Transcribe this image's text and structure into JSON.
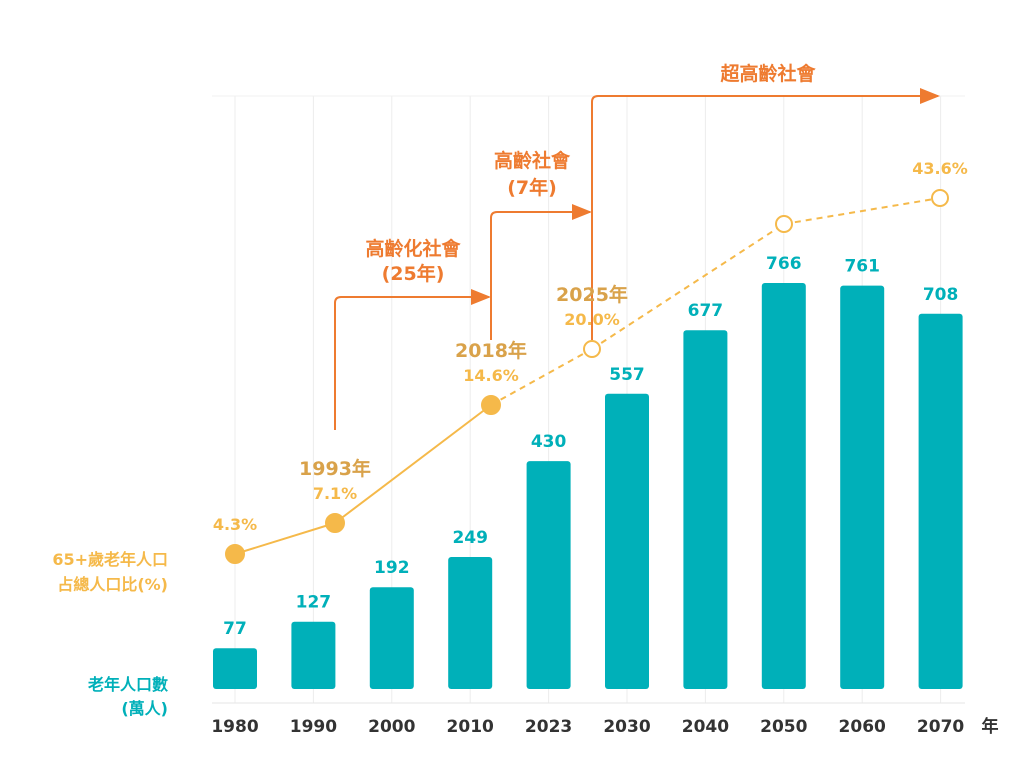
{
  "chart_data": {
    "type": "bar+line",
    "categories": [
      "1980",
      "1990",
      "2000",
      "2010",
      "2023",
      "2030",
      "2040",
      "2050",
      "2060",
      "2070"
    ],
    "x_unit_label": "年",
    "series": [
      {
        "name": "老年人口數\n(萬人)",
        "type": "bar",
        "color": "#00B0B9",
        "values": [
          77,
          127,
          192,
          249,
          430,
          557,
          677,
          766,
          761,
          708
        ]
      },
      {
        "name": "65+歲老年人口\n占總人口比(%)",
        "type": "line",
        "color": "#F5B94A",
        "points": [
          {
            "year": 1980,
            "value": 4.3,
            "label": "4.3%",
            "year_label": "",
            "marker": "filled"
          },
          {
            "year": 1993,
            "value": 7.1,
            "label": "7.1%",
            "year_label": "1993年",
            "marker": "filled"
          },
          {
            "year": 2018,
            "value": 14.6,
            "label": "14.6%",
            "year_label": "2018年",
            "marker": "filled"
          },
          {
            "year": 2025,
            "value": 20.0,
            "label": "20.0%",
            "year_label": "2025年",
            "marker": "hollow"
          },
          {
            "year": 2050,
            "value": 37.5,
            "label": "",
            "year_label": "",
            "marker": "hollow"
          },
          {
            "year": 2070,
            "value": 43.6,
            "label": "43.6%",
            "year_label": "",
            "marker": "hollow"
          }
        ],
        "solid_until": 2018,
        "dashed_from": 2018
      }
    ],
    "stages": [
      {
        "label": "高齡化社會",
        "duration": "(25年)",
        "from": 1993,
        "to": 2018
      },
      {
        "label": "高齡社會",
        "duration": "(7年)",
        "from": 2018,
        "to": 2025
      },
      {
        "label": "超高齡社會",
        "duration": "",
        "from": 2025,
        "to": 2070
      }
    ],
    "stage_color": "#EE7B30",
    "year_label_color": "#D9A24A",
    "axis_label_color": "#333333",
    "grid": "vertical"
  }
}
